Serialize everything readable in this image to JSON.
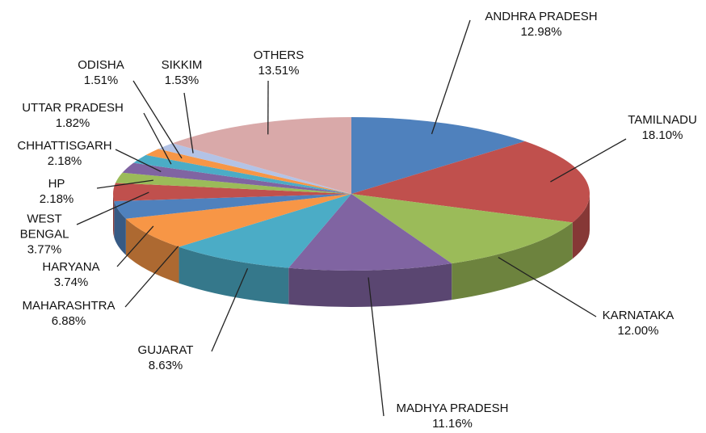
{
  "chart_data": {
    "type": "pie",
    "style": "3d",
    "categories": [
      "ANDHRA PRADESH",
      "TAMILNADU",
      "KARNATAKA",
      "MADHYA PRADESH",
      "GUJARAT",
      "MAHARASHTRA",
      "HARYANA",
      "WEST BENGAL",
      "HP",
      "CHHATTISGARH",
      "UTTAR PRADESH",
      "ODISHA",
      "SIKKIM",
      "OTHERS"
    ],
    "values": [
      12.98,
      18.1,
      12.0,
      11.16,
      8.63,
      6.88,
      3.74,
      3.77,
      2.18,
      2.18,
      1.82,
      1.51,
      1.53,
      13.51
    ],
    "value_labels": [
      "12.98%",
      "18.10%",
      "12.00%",
      "11.16%",
      "8.63%",
      "6.88%",
      "3.74%",
      "3.77%",
      "2.18%",
      "2.18%",
      "1.82%",
      "1.51%",
      "1.53%",
      "13.51%"
    ],
    "colors": [
      "#4f81bd",
      "#c0504d",
      "#9bbb59",
      "#8064a2",
      "#4bacc6",
      "#f79646",
      "#4f81bd",
      "#c0504d",
      "#9bbb59",
      "#8064a2",
      "#4bacc6",
      "#f79646",
      "#b3c3e6",
      "#d9a9a9"
    ]
  }
}
